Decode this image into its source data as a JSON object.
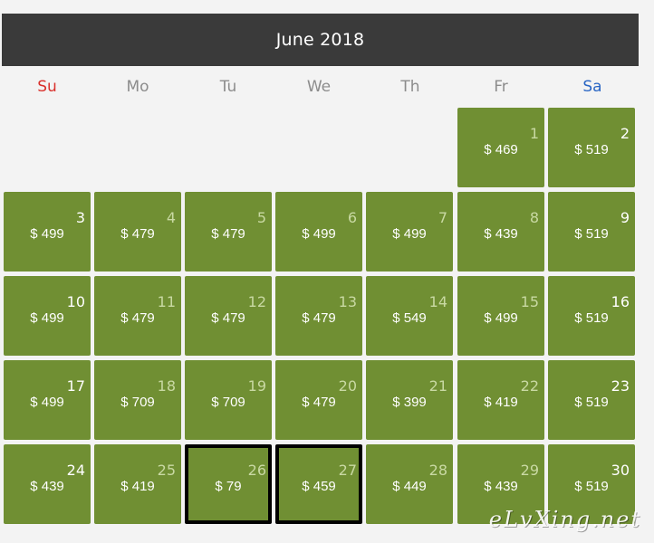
{
  "calendar": {
    "title": "June 2018",
    "weekdays": [
      "Su",
      "Mo",
      "Tu",
      "We",
      "Th",
      "Fr",
      "Sa"
    ],
    "days": [
      {
        "day": "1",
        "price": "$ 469"
      },
      {
        "day": "2",
        "price": "$ 519"
      },
      {
        "day": "3",
        "price": "$ 499"
      },
      {
        "day": "4",
        "price": "$ 479"
      },
      {
        "day": "5",
        "price": "$ 479"
      },
      {
        "day": "6",
        "price": "$ 499"
      },
      {
        "day": "7",
        "price": "$ 499"
      },
      {
        "day": "8",
        "price": "$ 439"
      },
      {
        "day": "9",
        "price": "$ 519"
      },
      {
        "day": "10",
        "price": "$ 499"
      },
      {
        "day": "11",
        "price": "$ 479"
      },
      {
        "day": "12",
        "price": "$ 479"
      },
      {
        "day": "13",
        "price": "$ 479"
      },
      {
        "day": "14",
        "price": "$ 549"
      },
      {
        "day": "15",
        "price": "$ 499"
      },
      {
        "day": "16",
        "price": "$ 519"
      },
      {
        "day": "17",
        "price": "$ 499"
      },
      {
        "day": "18",
        "price": "$ 709"
      },
      {
        "day": "19",
        "price": "$ 709"
      },
      {
        "day": "20",
        "price": "$ 479"
      },
      {
        "day": "21",
        "price": "$ 399"
      },
      {
        "day": "22",
        "price": "$ 419"
      },
      {
        "day": "23",
        "price": "$ 519"
      },
      {
        "day": "24",
        "price": "$ 439"
      },
      {
        "day": "25",
        "price": "$ 419"
      },
      {
        "day": "26",
        "price": "$ 79",
        "selected": true
      },
      {
        "day": "27",
        "price": "$ 459",
        "selected": true
      },
      {
        "day": "28",
        "price": "$ 449"
      },
      {
        "day": "29",
        "price": "$ 439"
      },
      {
        "day": "30",
        "price": "$ 519"
      }
    ]
  },
  "watermark": "eLvXing.net",
  "colors": {
    "header_bg": "#3a3a3a",
    "cell_bg": "#708f33",
    "sunday": "#d9302b",
    "saturday": "#2a66c4",
    "weekday": "#8c8c8c",
    "page_bg": "#f3f3f3"
  }
}
